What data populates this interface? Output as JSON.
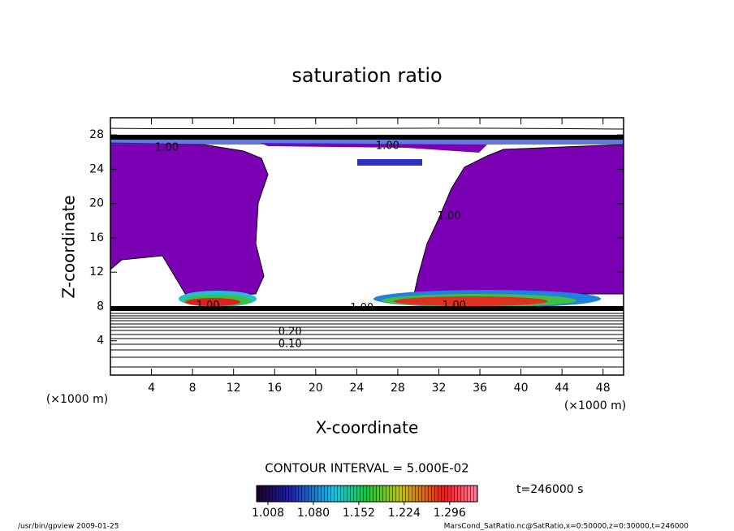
{
  "chart_data": {
    "type": "contour",
    "title": "saturation ratio",
    "x_label": "X-coordinate",
    "y_label": "Z-coordinate",
    "x_unit": "(×1000 m)",
    "y_unit": "(×1000 m)",
    "xlim": [
      0,
      50
    ],
    "xticks": [
      4,
      8,
      12,
      16,
      20,
      24,
      28,
      32,
      36,
      40,
      44,
      48
    ],
    "ylim": [
      0,
      30
    ],
    "yticks": [
      4,
      8,
      12,
      16,
      20,
      24,
      28
    ],
    "contour_interval": "CONTOUR INTERVAL = 5.000E-02",
    "contour_labels": [
      {
        "text": "1.00",
        "x": 5.5,
        "z": 26.5
      },
      {
        "text": "1.00",
        "x": 27,
        "z": 26.7
      },
      {
        "text": "1.00",
        "x": 33,
        "z": 18.5
      },
      {
        "text": "1.00",
        "x": 9.5,
        "z": 8.1
      },
      {
        "text": "1.00",
        "x": 24.5,
        "z": 7.8
      },
      {
        "text": "1.00",
        "x": 33.5,
        "z": 8.1
      },
      {
        "text": "0.20",
        "x": 17.5,
        "z": 5
      },
      {
        "text": "0.10",
        "x": 17.5,
        "z": 3.6
      }
    ],
    "colorbar_ticks": [
      {
        "value": 1.008,
        "label": "1.008"
      },
      {
        "value": 1.08,
        "label": "1.080"
      },
      {
        "value": 1.152,
        "label": "1.152"
      },
      {
        "value": 1.224,
        "label": "1.224"
      },
      {
        "value": 1.296,
        "label": "1.296"
      }
    ],
    "colorbar_lim": [
      0.99,
      1.34
    ],
    "time_label": "t=246000 s",
    "footer_left": "/usr/bin/gpview  2009-01-25",
    "footer_right": "MarsCond_SatRatio.nc@SatRatio,x=0:50000,z=0:30000,t=246000"
  }
}
